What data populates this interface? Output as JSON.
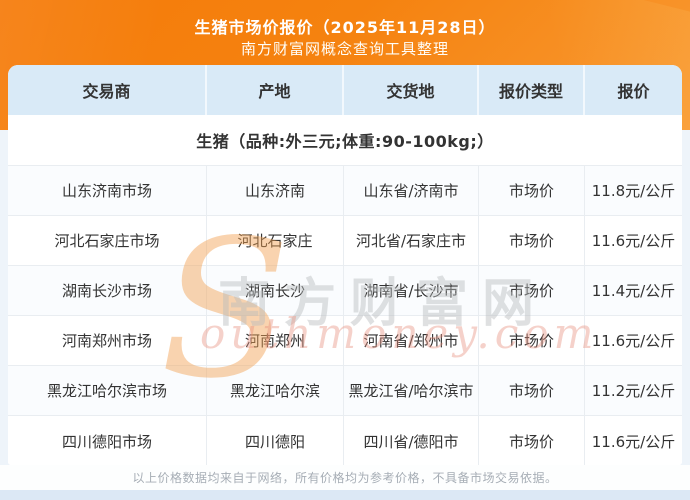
{
  "page": {
    "title": "生猪市场价报价（2025年11月28日）",
    "subtitle": "南方财富网概念查询工具整理",
    "footer": "以上价格数据均来自于网络，所有价格均为参考价格，不具备市场交易依据。"
  },
  "table": {
    "headers": [
      "交易商",
      "产地",
      "交货地",
      "报价类型",
      "报价"
    ],
    "species_note": "生猪（品种:外三元;体重:90-100kg;）",
    "rows": [
      [
        "山东济南市场",
        "山东济南",
        "山东省/济南市",
        "市场价",
        "11.8元/公斤"
      ],
      [
        "河北石家庄市场",
        "河北石家庄",
        "河北省/石家庄市",
        "市场价",
        "11.6元/公斤"
      ],
      [
        "湖南长沙市场",
        "湖南长沙",
        "湖南省/长沙市",
        "市场价",
        "11.4元/公斤"
      ],
      [
        "河南郑州市场",
        "河南郑州",
        "河南省/郑州市",
        "市场价",
        "11.6元/公斤"
      ],
      [
        "黑龙江哈尔滨市场",
        "黑龙江哈尔滨",
        "黑龙江省/哈尔滨市",
        "市场价",
        "11.2元/公斤"
      ],
      [
        "四川德阳市场",
        "四川德阳",
        "四川省/德阳市",
        "市场价",
        "11.6元/公斤"
      ]
    ]
  },
  "watermark": {
    "s_glyph": "S",
    "latin": "outhmoney.com",
    "cn": "南方财富网"
  },
  "colors": {
    "hero_orange_start": "#f57b0a",
    "hero_orange_end": "#f99a33",
    "header_bg": "#d9eaf7",
    "page_bg": "#eef4fa",
    "cell_text": "#333333",
    "footer_text": "#a6adb5",
    "watermark_orange": "#f2a050",
    "watermark_red": "#e88f7d",
    "watermark_gray": "#b9bcbe",
    "bottom_band": "#dce8f5"
  }
}
